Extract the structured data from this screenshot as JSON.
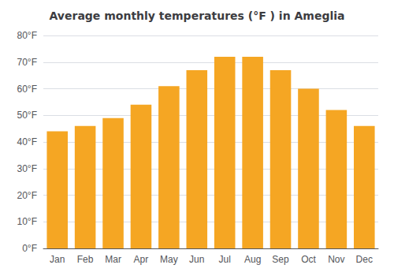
{
  "chart_data": {
    "type": "bar",
    "title": "Average monthly temperatures (°F ) in Ameglia",
    "categories": [
      "Jan",
      "Feb",
      "Mar",
      "Apr",
      "May",
      "Jun",
      "Jul",
      "Aug",
      "Sep",
      "Oct",
      "Nov",
      "Dec"
    ],
    "values": [
      44,
      46,
      49,
      54,
      61,
      67,
      72,
      72,
      67,
      60,
      52,
      46
    ],
    "color": "#F5A623",
    "ylim": [
      0,
      80
    ],
    "yticks": [
      {
        "value": 0,
        "label": "0°F"
      },
      {
        "value": 10,
        "label": "10°F"
      },
      {
        "value": 20,
        "label": "20°F"
      },
      {
        "value": 30,
        "label": "30°F"
      },
      {
        "value": 40,
        "label": "40°F"
      },
      {
        "value": 50,
        "label": "50°F"
      },
      {
        "value": 60,
        "label": "60°F"
      },
      {
        "value": 70,
        "label": "70°F"
      },
      {
        "value": 80,
        "label": "80°F"
      }
    ],
    "grid": true
  }
}
